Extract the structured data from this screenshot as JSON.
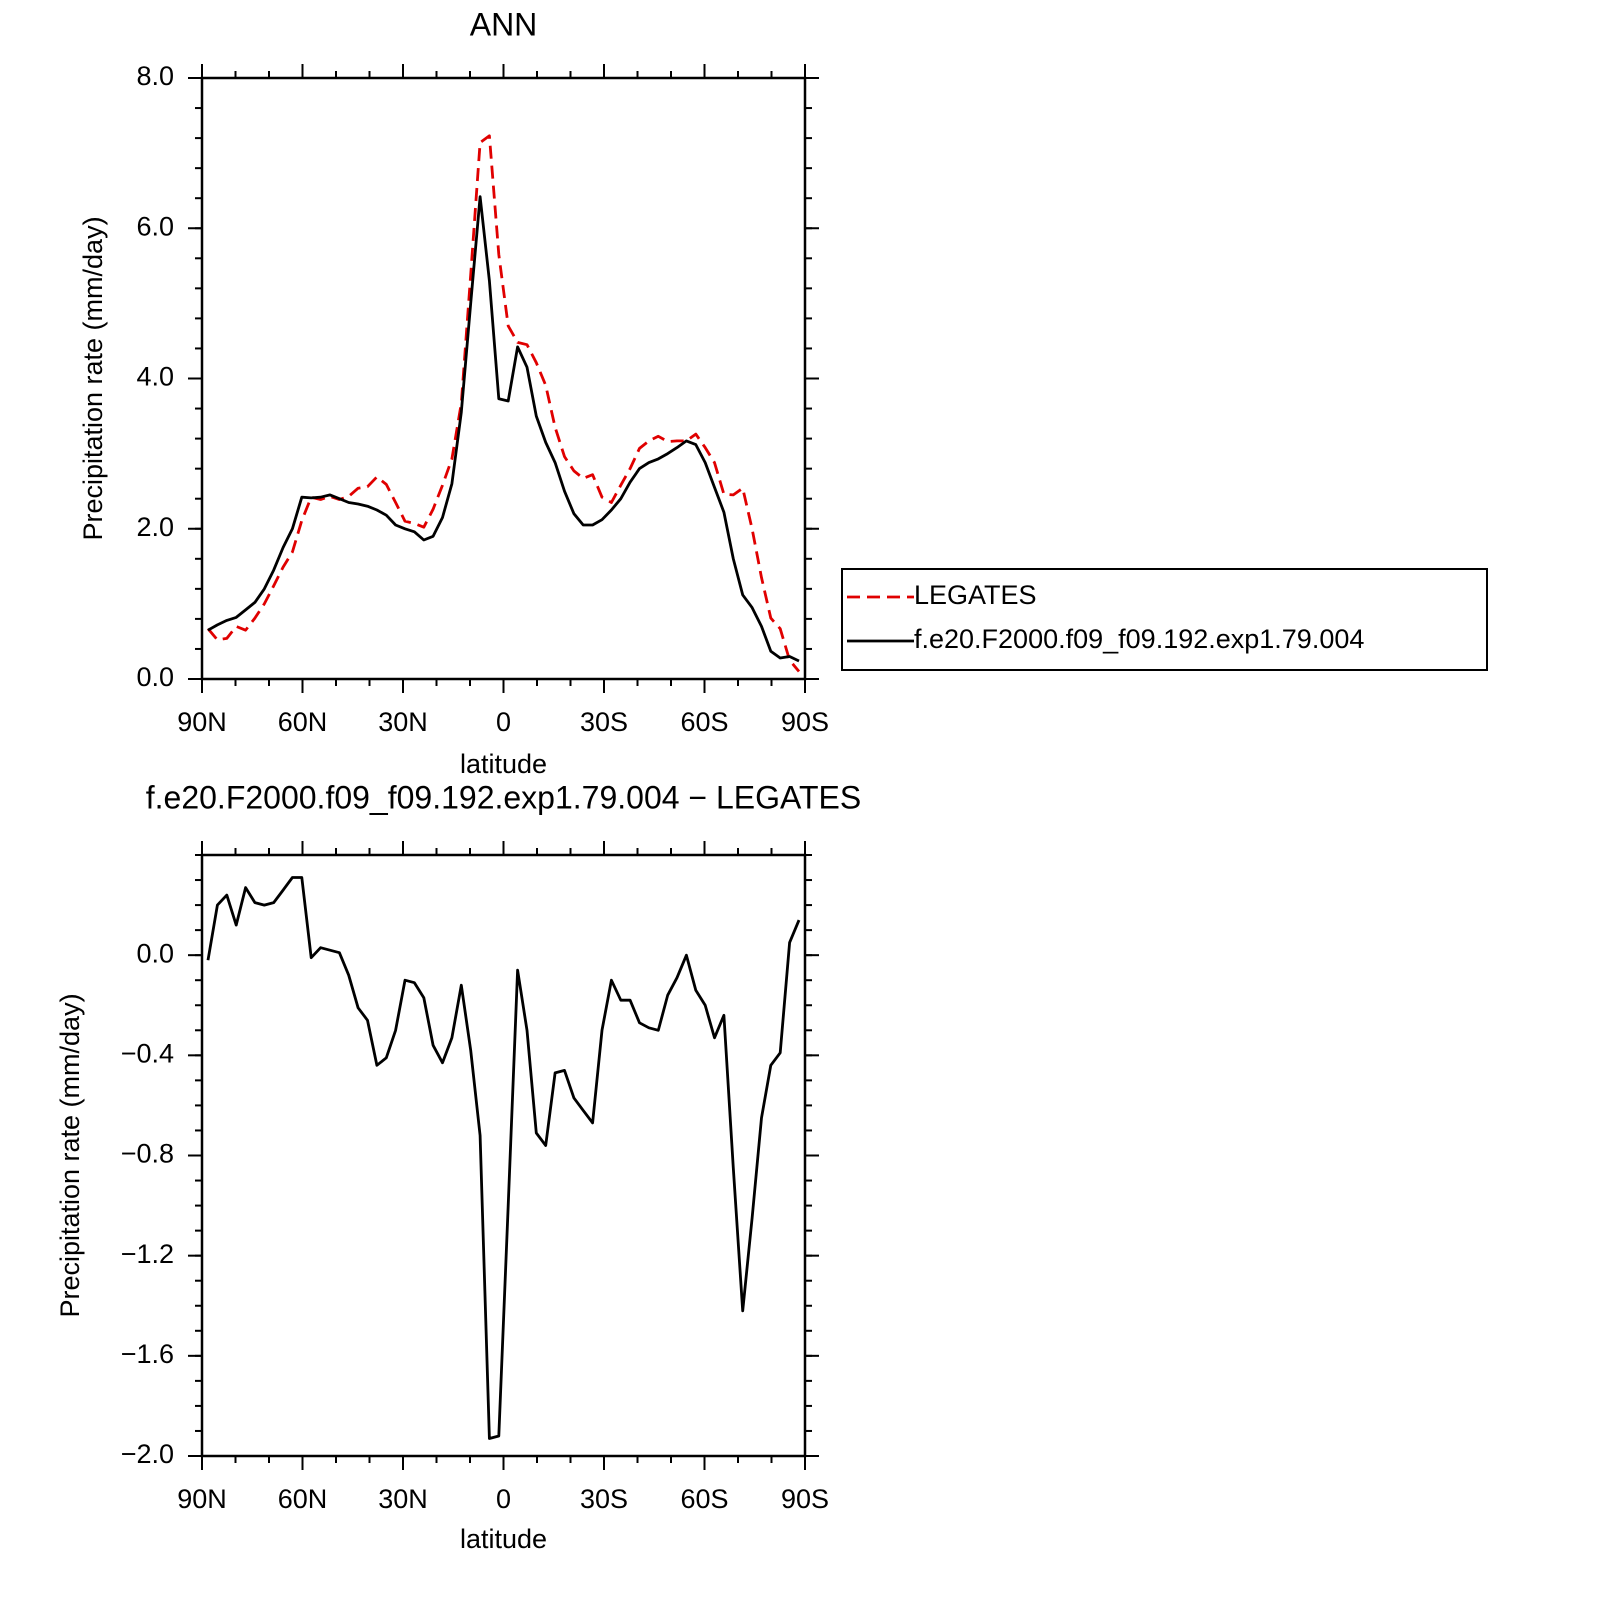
{
  "chart_data": [
    {
      "type": "line",
      "title": "ANN",
      "xlabel": "latitude",
      "ylabel": "Precipitation rate (mm/day)",
      "x": [
        88.2,
        85.4,
        82.6,
        79.8,
        77,
        74.2,
        71.4,
        68.6,
        65.8,
        63,
        60.2,
        57.4,
        54.6,
        51.8,
        49,
        46.2,
        43.4,
        40.6,
        37.8,
        35,
        32.2,
        29.4,
        26.6,
        23.8,
        21,
        18.2,
        15.4,
        12.6,
        9.8,
        7,
        4.2,
        1.4,
        -1.4,
        -4.2,
        -7,
        -9.8,
        -12.6,
        -15.4,
        -18.2,
        -21,
        -23.8,
        -26.6,
        -29.4,
        -32.2,
        -35,
        -37.8,
        -40.6,
        -43.4,
        -46.2,
        -49,
        -51.8,
        -54.6,
        -57.4,
        -60.2,
        -63,
        -65.8,
        -68.6,
        -71.4,
        -74.2,
        -77,
        -79.8,
        -82.6,
        -85.4,
        -88.2
      ],
      "series": [
        {
          "name": "LEGATES",
          "color": "#e00000",
          "linestyle": "dashed",
          "values": [
            0.67,
            0.52,
            0.54,
            0.7,
            0.65,
            0.81,
            1.0,
            1.24,
            1.49,
            1.69,
            2.11,
            2.42,
            2.39,
            2.43,
            2.39,
            2.43,
            2.54,
            2.56,
            2.69,
            2.59,
            2.35,
            2.1,
            2.07,
            2.02,
            2.26,
            2.58,
            2.93,
            3.67,
            5.38,
            7.14,
            7.23,
            5.65,
            4.7,
            4.48,
            4.45,
            4.21,
            3.91,
            3.35,
            2.96,
            2.77,
            2.67,
            2.72,
            2.42,
            2.35,
            2.58,
            2.8,
            3.07,
            3.17,
            3.23,
            3.16,
            3.17,
            3.17,
            3.26,
            3.08,
            2.88,
            2.46,
            2.45,
            2.54,
            2.0,
            1.35,
            0.81,
            0.67,
            0.25,
            0.1
          ]
        },
        {
          "name": "f.e20.F2000.f09_f09.192.exp1.79.004",
          "color": "#000000",
          "linestyle": "solid",
          "values": [
            0.65,
            0.72,
            0.78,
            0.82,
            0.92,
            1.02,
            1.2,
            1.45,
            1.75,
            2.0,
            2.42,
            2.41,
            2.42,
            2.45,
            2.4,
            2.35,
            2.33,
            2.3,
            2.25,
            2.18,
            2.05,
            2.0,
            1.96,
            1.85,
            1.9,
            2.15,
            2.6,
            3.55,
            5.0,
            6.42,
            5.3,
            3.73,
            3.7,
            4.42,
            4.15,
            3.5,
            3.15,
            2.88,
            2.5,
            2.2,
            2.05,
            2.05,
            2.12,
            2.25,
            2.4,
            2.62,
            2.8,
            2.88,
            2.93,
            3.0,
            3.08,
            3.17,
            3.12,
            2.88,
            2.55,
            2.22,
            1.6,
            1.12,
            0.95,
            0.7,
            0.37,
            0.28,
            0.3,
            0.24
          ]
        }
      ],
      "xlim": [
        90,
        -90
      ],
      "xticks": [
        {
          "value": 90,
          "label": "90N"
        },
        {
          "value": 60,
          "label": "60N"
        },
        {
          "value": 30,
          "label": "30N"
        },
        0,
        {
          "value": -30,
          "label": "30S"
        },
        {
          "value": -60,
          "label": "60S"
        },
        {
          "value": -90,
          "label": "90S"
        }
      ],
      "ylim": [
        0,
        8
      ],
      "yticks": [
        {
          "value": 0,
          "label": "0.0"
        },
        {
          "value": 2,
          "label": "2.0"
        },
        {
          "value": 4,
          "label": "4.0"
        },
        {
          "value": 6,
          "label": "6.0"
        },
        {
          "value": 8,
          "label": "8.0"
        }
      ],
      "legend": "right"
    },
    {
      "type": "line",
      "title": "f.e20.F2000.f09_f09.192.exp1.79.004 − LEGATES",
      "xlabel": "latitude",
      "ylabel": "Precipitation rate (mm/day)",
      "x": [
        88.2,
        85.4,
        82.6,
        79.8,
        77,
        74.2,
        71.4,
        68.6,
        65.8,
        63,
        60.2,
        57.4,
        54.6,
        51.8,
        49,
        46.2,
        43.4,
        40.6,
        37.8,
        35,
        32.2,
        29.4,
        26.6,
        23.8,
        21,
        18.2,
        15.4,
        12.6,
        9.8,
        7,
        4.2,
        1.4,
        -1.4,
        -4.2,
        -7,
        -9.8,
        -12.6,
        -15.4,
        -18.2,
        -21,
        -23.8,
        -26.6,
        -29.4,
        -32.2,
        -35,
        -37.8,
        -40.6,
        -43.4,
        -46.2,
        -49,
        -51.8,
        -54.6,
        -57.4,
        -60.2,
        -63,
        -65.8,
        -68.6,
        -71.4,
        -74.2,
        -77,
        -79.8,
        -82.6,
        -85.4,
        -88.2
      ],
      "series": [
        {
          "color": "#000000",
          "linestyle": "solid",
          "values": [
            -0.02,
            0.2,
            0.24,
            0.12,
            0.27,
            0.21,
            0.2,
            0.21,
            0.26,
            0.31,
            0.31,
            -0.01,
            0.03,
            0.02,
            0.01,
            -0.08,
            -0.21,
            -0.26,
            -0.44,
            -0.41,
            -0.3,
            -0.1,
            -0.11,
            -0.17,
            -0.36,
            -0.43,
            -0.33,
            -0.12,
            -0.38,
            -0.72,
            -1.93,
            -1.92,
            -1.0,
            -0.06,
            -0.3,
            -0.71,
            -0.76,
            -0.47,
            -0.46,
            -0.57,
            -0.62,
            -0.67,
            -0.3,
            -0.1,
            -0.18,
            -0.18,
            -0.27,
            -0.29,
            -0.3,
            -0.16,
            -0.09,
            0.0,
            -0.14,
            -0.2,
            -0.33,
            -0.24,
            -0.85,
            -1.42,
            -1.05,
            -0.65,
            -0.44,
            -0.39,
            0.05,
            0.14
          ]
        }
      ],
      "xlim": [
        90,
        -90
      ],
      "xticks": [
        {
          "value": 90,
          "label": "90N"
        },
        {
          "value": 60,
          "label": "60N"
        },
        {
          "value": 30,
          "label": "30N"
        },
        0,
        {
          "value": -30,
          "label": "30S"
        },
        {
          "value": -60,
          "label": "60S"
        },
        {
          "value": -90,
          "label": "90S"
        }
      ],
      "ylim": [
        -2.0,
        0.4
      ],
      "yticks": [
        {
          "value": 0,
          "label": "0.0"
        },
        {
          "value": -0.4,
          "label": "−0.4"
        },
        {
          "value": -0.8,
          "label": "−0.8"
        },
        {
          "value": -1.2,
          "label": "−1.2"
        },
        {
          "value": -1.6,
          "label": "−1.6"
        },
        {
          "value": -2.0,
          "label": "−2.0"
        }
      ]
    }
  ]
}
